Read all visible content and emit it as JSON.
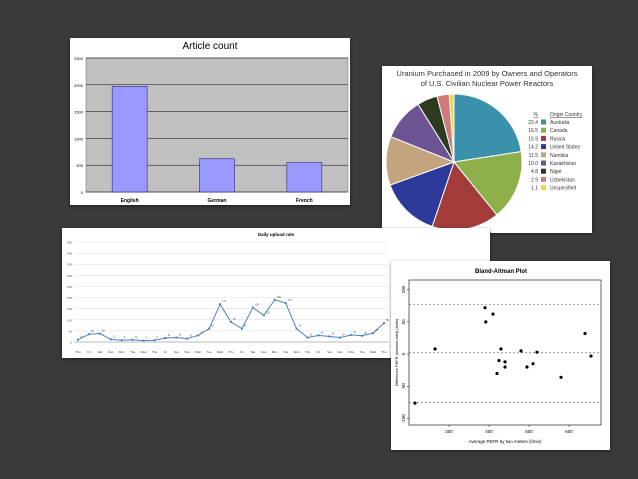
{
  "chart_data": [
    {
      "type": "bar",
      "title": "Article count",
      "categories": [
        "English",
        "German",
        "French"
      ],
      "values": [
        1970,
        620,
        550
      ],
      "ylim": [
        0,
        2500
      ],
      "yticks": [
        0,
        500,
        1000,
        1500,
        2000,
        2500
      ],
      "colors": {
        "bar": "#9999ff",
        "plot_bg": "#c0c0c0"
      }
    },
    {
      "type": "pie",
      "title_lines": [
        "Uranium Purchased in 2009 by Owners and Operators",
        "of U.S. Civilian Nuclear Power Reactors"
      ],
      "legend_header_pct": "%",
      "legend_header_label": "Origin Country",
      "slices": [
        {
          "label": "Australia",
          "value": 22.4,
          "color": "#3a91ab"
        },
        {
          "label": "Canada",
          "value": 16.5,
          "color": "#8db04b"
        },
        {
          "label": "Russia",
          "value": 15.9,
          "color": "#a33b3b"
        },
        {
          "label": "United States",
          "value": 14.2,
          "color": "#2e3a9a"
        },
        {
          "label": "Namibia",
          "value": 11.5,
          "color": "#c2a57e"
        },
        {
          "label": "Kazakhstan",
          "value": 10.0,
          "color": "#6e5392"
        },
        {
          "label": "Niger",
          "value": 4.8,
          "color": "#2c3a1f"
        },
        {
          "label": "Uzbekistan",
          "value": 2.9,
          "color": "#d17a7a"
        },
        {
          "label": "Unspecified",
          "value": 1.1,
          "color": "#f2d34a"
        }
      ]
    },
    {
      "type": "line",
      "title": "Daily upload rate",
      "ylim": [
        0,
        450
      ],
      "ytick_labels": [
        "0",
        "50",
        "100",
        "150",
        "200",
        "250",
        "300",
        "350",
        "400",
        "450"
      ],
      "values": [
        10,
        35,
        38,
        12,
        8,
        10,
        6,
        8,
        18,
        20,
        15,
        30,
        60,
        170,
        90,
        60,
        155,
        120,
        190,
        175,
        60,
        20,
        30,
        25,
        20,
        32,
        28,
        40,
        85
      ],
      "weekday_labels": [
        "Thu",
        "Fri",
        "Sat",
        "Sun",
        "Mon",
        "Tue",
        "Wed",
        "Thu",
        "Fri",
        "Sat",
        "Sun",
        "Mon",
        "Tue",
        "Wed",
        "Thu",
        "Fri",
        "Sat",
        "Sun",
        "Mon",
        "Tue",
        "Wed",
        "Thu",
        "Fri",
        "Sat",
        "Sun",
        "Mon",
        "Tue",
        "Wed",
        "Thu"
      ],
      "colors": {
        "line": "#4f81bd",
        "grid": "#d9d9d9"
      }
    },
    {
      "type": "scatter",
      "title": "Bland-Altman Plot",
      "xlabel": "Average PEFR by two meters (l/min)",
      "ylabel": "Difference PEFR (wmeter-mini) (l/min)",
      "xlim": [
        200,
        680
      ],
      "ylim": [
        -110,
        115
      ],
      "xticks": [
        300,
        400,
        500,
        600
      ],
      "yticks": [
        -100,
        -50,
        0,
        50,
        100
      ],
      "reference_lines": [
        -75,
        2,
        77
      ],
      "points": [
        [
          215,
          -76
        ],
        [
          265,
          8
        ],
        [
          390,
          72
        ],
        [
          392,
          50
        ],
        [
          410,
          62
        ],
        [
          420,
          -30
        ],
        [
          425,
          -10
        ],
        [
          430,
          8
        ],
        [
          440,
          -12
        ],
        [
          440,
          -20
        ],
        [
          480,
          5
        ],
        [
          495,
          -20
        ],
        [
          510,
          -15
        ],
        [
          520,
          3
        ],
        [
          580,
          -36
        ],
        [
          640,
          32
        ],
        [
          655,
          -3
        ]
      ]
    }
  ]
}
